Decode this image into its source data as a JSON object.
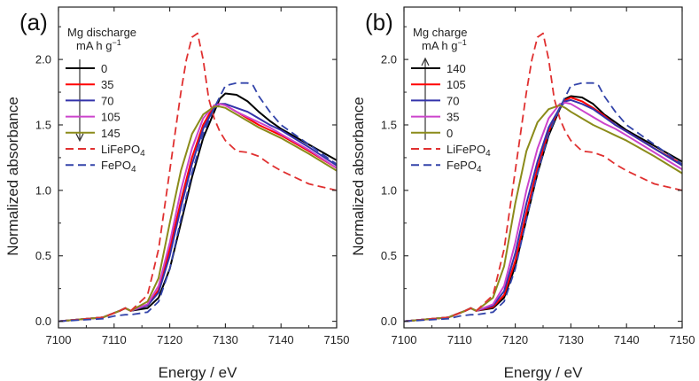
{
  "chart_data": [
    {
      "type": "line",
      "panel_label": "(a)",
      "legend_title": "Mg discharge",
      "legend_unit": "mA h g",
      "legend_unit_sup": "−1",
      "legend_arrow": "down",
      "xlabel": "Energy / eV",
      "ylabel": "Normalized absorbance",
      "xlim": [
        7100,
        7150
      ],
      "ylim": [
        -0.05,
        2.4
      ],
      "xticks": [
        "7100",
        "7110",
        "7120",
        "7130",
        "7140",
        "7150"
      ],
      "yticks": [
        "0.0",
        "0.5",
        "1.0",
        "1.5",
        "2.0"
      ],
      "series": [
        {
          "name": "0",
          "color": "#000000",
          "dash": "solid",
          "x": [
            7100,
            7108,
            7111,
            7112,
            7113,
            7116,
            7118,
            7120,
            7122,
            7124,
            7126,
            7128,
            7129,
            7130,
            7132,
            7134,
            7136,
            7138,
            7140,
            7145,
            7150
          ],
          "y": [
            0.0,
            0.03,
            0.08,
            0.1,
            0.08,
            0.1,
            0.18,
            0.4,
            0.75,
            1.1,
            1.4,
            1.6,
            1.7,
            1.74,
            1.73,
            1.68,
            1.6,
            1.53,
            1.47,
            1.35,
            1.23
          ]
        },
        {
          "name": "35",
          "color": "#ff0000",
          "dash": "solid",
          "x": [
            7100,
            7108,
            7111,
            7112,
            7113,
            7116,
            7118,
            7120,
            7122,
            7124,
            7126,
            7128,
            7129,
            7130,
            7132,
            7134,
            7136,
            7138,
            7140,
            7145,
            7150
          ],
          "y": [
            0.0,
            0.03,
            0.08,
            0.1,
            0.08,
            0.12,
            0.24,
            0.55,
            0.92,
            1.25,
            1.5,
            1.65,
            1.66,
            1.65,
            1.6,
            1.55,
            1.5,
            1.46,
            1.42,
            1.3,
            1.17
          ]
        },
        {
          "name": "70",
          "color": "#3333aa",
          "dash": "solid",
          "x": [
            7100,
            7108,
            7111,
            7112,
            7113,
            7116,
            7118,
            7120,
            7122,
            7124,
            7126,
            7128,
            7129,
            7130,
            7132,
            7134,
            7136,
            7138,
            7140,
            7145,
            7150
          ],
          "y": [
            0.0,
            0.03,
            0.08,
            0.1,
            0.08,
            0.12,
            0.22,
            0.5,
            0.87,
            1.2,
            1.47,
            1.63,
            1.66,
            1.66,
            1.63,
            1.6,
            1.55,
            1.5,
            1.46,
            1.33,
            1.19
          ]
        },
        {
          "name": "105",
          "color": "#cc44cc",
          "dash": "solid",
          "x": [
            7100,
            7108,
            7111,
            7112,
            7113,
            7116,
            7118,
            7120,
            7122,
            7124,
            7126,
            7128,
            7129,
            7130,
            7132,
            7134,
            7136,
            7138,
            7140,
            7145,
            7150
          ],
          "y": [
            0.0,
            0.03,
            0.08,
            0.1,
            0.08,
            0.13,
            0.27,
            0.6,
            1.0,
            1.32,
            1.55,
            1.65,
            1.66,
            1.65,
            1.6,
            1.56,
            1.52,
            1.48,
            1.43,
            1.31,
            1.17
          ]
        },
        {
          "name": "145",
          "color": "#8b8b1a",
          "dash": "solid",
          "x": [
            7100,
            7108,
            7111,
            7112,
            7113,
            7116,
            7118,
            7120,
            7122,
            7124,
            7126,
            7128,
            7129,
            7130,
            7132,
            7134,
            7136,
            7138,
            7140,
            7145,
            7150
          ],
          "y": [
            0.0,
            0.03,
            0.08,
            0.1,
            0.08,
            0.15,
            0.33,
            0.75,
            1.15,
            1.43,
            1.58,
            1.64,
            1.64,
            1.63,
            1.58,
            1.53,
            1.48,
            1.44,
            1.4,
            1.28,
            1.15
          ]
        },
        {
          "name": "LiFePO4",
          "color": "#e03030",
          "dash": "dashed",
          "x": [
            7100,
            7108,
            7111,
            7112,
            7113,
            7116,
            7118,
            7120,
            7122,
            7123,
            7124,
            7125,
            7126,
            7127,
            7128,
            7129,
            7130,
            7132,
            7134,
            7136,
            7138,
            7140,
            7145,
            7150
          ],
          "y": [
            0.0,
            0.03,
            0.08,
            0.1,
            0.08,
            0.2,
            0.55,
            1.15,
            1.75,
            2.0,
            2.17,
            2.2,
            2.0,
            1.7,
            1.55,
            1.45,
            1.38,
            1.3,
            1.29,
            1.26,
            1.2,
            1.15,
            1.05,
            1.0
          ]
        },
        {
          "name": "FePO4",
          "color": "#3344aa",
          "dash": "dashed",
          "x": [
            7100,
            7108,
            7110,
            7112,
            7113,
            7116,
            7118,
            7120,
            7122,
            7124,
            7126,
            7128,
            7130,
            7132,
            7134,
            7135,
            7136,
            7138,
            7140,
            7145,
            7150
          ],
          "y": [
            0.0,
            0.02,
            0.04,
            0.05,
            0.05,
            0.07,
            0.15,
            0.4,
            0.78,
            1.13,
            1.43,
            1.63,
            1.8,
            1.82,
            1.82,
            1.8,
            1.72,
            1.6,
            1.5,
            1.35,
            1.2
          ]
        }
      ]
    },
    {
      "type": "line",
      "panel_label": "(b)",
      "legend_title": "Mg charge",
      "legend_unit": "mA h g",
      "legend_unit_sup": "−1",
      "legend_arrow": "up",
      "xlabel": "Energy / eV",
      "ylabel": "Normalized absorbance",
      "xlim": [
        7100,
        7150
      ],
      "ylim": [
        -0.05,
        2.4
      ],
      "xticks": [
        "7100",
        "7110",
        "7120",
        "7130",
        "7140",
        "7150"
      ],
      "yticks": [
        "0.0",
        "0.5",
        "1.0",
        "1.5",
        "2.0"
      ],
      "series": [
        {
          "name": "140",
          "color": "#000000",
          "dash": "solid",
          "x": [
            7100,
            7108,
            7111,
            7112,
            7113,
            7116,
            7118,
            7120,
            7122,
            7124,
            7126,
            7128,
            7129,
            7130,
            7132,
            7134,
            7136,
            7138,
            7140,
            7145,
            7150
          ],
          "y": [
            0.0,
            0.03,
            0.08,
            0.1,
            0.08,
            0.1,
            0.18,
            0.42,
            0.78,
            1.13,
            1.42,
            1.62,
            1.7,
            1.72,
            1.71,
            1.66,
            1.58,
            1.52,
            1.46,
            1.34,
            1.22
          ]
        },
        {
          "name": "105",
          "color": "#ff0000",
          "dash": "solid",
          "x": [
            7100,
            7108,
            7111,
            7112,
            7113,
            7116,
            7118,
            7120,
            7122,
            7124,
            7126,
            7128,
            7129,
            7130,
            7132,
            7134,
            7136,
            7138,
            7140,
            7145,
            7150
          ],
          "y": [
            0.0,
            0.03,
            0.08,
            0.1,
            0.08,
            0.11,
            0.2,
            0.46,
            0.83,
            1.17,
            1.45,
            1.63,
            1.69,
            1.71,
            1.68,
            1.63,
            1.57,
            1.5,
            1.45,
            1.32,
            1.2
          ]
        },
        {
          "name": "70",
          "color": "#3333aa",
          "dash": "solid",
          "x": [
            7100,
            7108,
            7111,
            7112,
            7113,
            7116,
            7118,
            7120,
            7122,
            7124,
            7126,
            7128,
            7129,
            7130,
            7132,
            7134,
            7136,
            7138,
            7140,
            7145,
            7150
          ],
          "y": [
            0.0,
            0.03,
            0.08,
            0.1,
            0.08,
            0.12,
            0.23,
            0.52,
            0.9,
            1.22,
            1.48,
            1.63,
            1.68,
            1.69,
            1.66,
            1.62,
            1.56,
            1.5,
            1.45,
            1.32,
            1.19
          ]
        },
        {
          "name": "35",
          "color": "#cc44cc",
          "dash": "solid",
          "x": [
            7100,
            7108,
            7111,
            7112,
            7113,
            7116,
            7118,
            7120,
            7122,
            7124,
            7126,
            7128,
            7129,
            7130,
            7132,
            7134,
            7136,
            7138,
            7140,
            7145,
            7150
          ],
          "y": [
            0.0,
            0.03,
            0.08,
            0.1,
            0.08,
            0.13,
            0.27,
            0.6,
            1.0,
            1.32,
            1.55,
            1.66,
            1.67,
            1.66,
            1.61,
            1.56,
            1.51,
            1.47,
            1.42,
            1.29,
            1.16
          ]
        },
        {
          "name": "0",
          "color": "#8b8b1a",
          "dash": "solid",
          "x": [
            7100,
            7108,
            7111,
            7112,
            7113,
            7116,
            7118,
            7120,
            7122,
            7124,
            7126,
            7128,
            7129,
            7130,
            7132,
            7134,
            7136,
            7138,
            7140,
            7145,
            7150
          ],
          "y": [
            0.0,
            0.03,
            0.08,
            0.1,
            0.08,
            0.18,
            0.42,
            0.9,
            1.3,
            1.52,
            1.62,
            1.65,
            1.63,
            1.6,
            1.55,
            1.5,
            1.46,
            1.42,
            1.38,
            1.26,
            1.13
          ]
        },
        {
          "name": "LiFePO4",
          "color": "#e03030",
          "dash": "dashed",
          "x": [
            7100,
            7108,
            7111,
            7112,
            7113,
            7116,
            7118,
            7120,
            7122,
            7123,
            7124,
            7125,
            7126,
            7127,
            7128,
            7129,
            7130,
            7132,
            7134,
            7136,
            7138,
            7140,
            7145,
            7150
          ],
          "y": [
            0.0,
            0.03,
            0.08,
            0.1,
            0.08,
            0.2,
            0.55,
            1.15,
            1.75,
            2.0,
            2.17,
            2.2,
            2.0,
            1.7,
            1.55,
            1.45,
            1.38,
            1.3,
            1.29,
            1.26,
            1.2,
            1.15,
            1.05,
            1.0
          ]
        },
        {
          "name": "FePO4",
          "color": "#3344aa",
          "dash": "dashed",
          "x": [
            7100,
            7108,
            7110,
            7112,
            7113,
            7116,
            7118,
            7120,
            7122,
            7124,
            7126,
            7128,
            7130,
            7132,
            7134,
            7135,
            7136,
            7138,
            7140,
            7145,
            7150
          ],
          "y": [
            0.0,
            0.02,
            0.04,
            0.05,
            0.05,
            0.07,
            0.15,
            0.4,
            0.78,
            1.13,
            1.43,
            1.63,
            1.8,
            1.82,
            1.82,
            1.8,
            1.72,
            1.6,
            1.5,
            1.35,
            1.2
          ]
        }
      ]
    }
  ]
}
